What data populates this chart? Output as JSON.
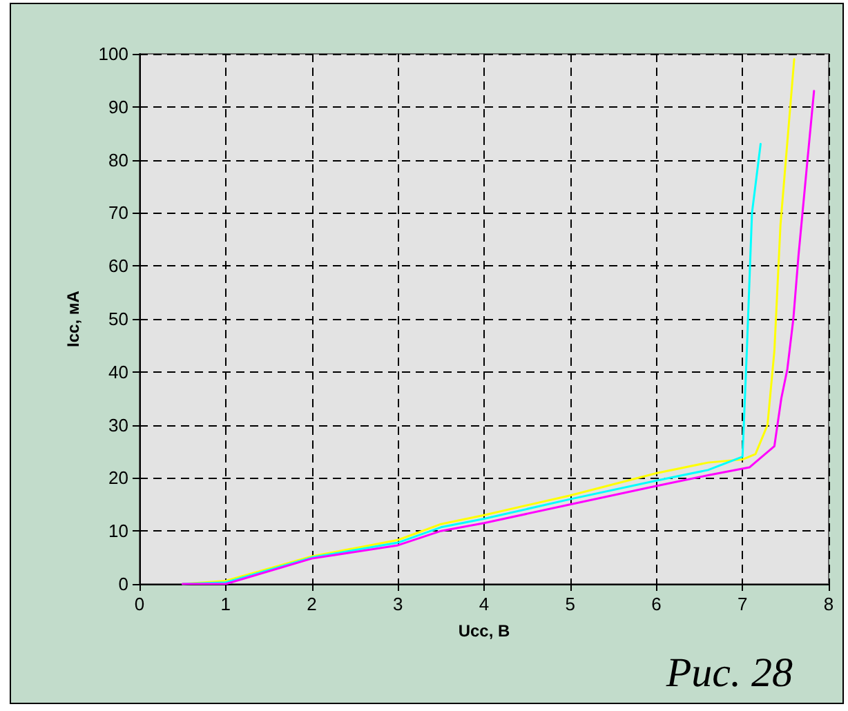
{
  "chart_data": {
    "type": "line",
    "xlabel": "Ucc, В",
    "ylabel": "Icc, мА",
    "annotations": [
      "Рис. 28"
    ],
    "xlim": [
      0,
      8
    ],
    "xticks": [
      0,
      1,
      2,
      3,
      4,
      5,
      6,
      7,
      8
    ],
    "ylim": [
      0,
      100
    ],
    "yticks": [
      0,
      10,
      20,
      30,
      40,
      50,
      60,
      70,
      80,
      90,
      100
    ],
    "grid": true,
    "line_style": "solid",
    "marker": "none",
    "series": [
      {
        "color": "#ffff00",
        "x": [
          0.5,
          1,
          2,
          3,
          3.5,
          4,
          5,
          6,
          6.6,
          7,
          7.15,
          7.29,
          7.37,
          7.44,
          7.6
        ],
        "values": [
          0,
          0.6,
          5.2,
          8.3,
          11.3,
          13,
          16.7,
          20.9,
          22.9,
          23.5,
          24.5,
          30,
          44,
          67.6,
          99
        ]
      },
      {
        "color": "#00ffff",
        "x": [
          0.5,
          1,
          2,
          3,
          3.5,
          4,
          5,
          6,
          6.6,
          7,
          7.05,
          7.11,
          7.21
        ],
        "values": [
          0,
          0.3,
          5,
          7.8,
          10.7,
          12.3,
          16,
          19.5,
          21.5,
          24,
          44,
          70,
          83
        ]
      },
      {
        "color": "#ff00ff",
        "x": [
          0.5,
          1,
          2,
          3,
          3.5,
          4,
          5,
          6,
          6.6,
          7.08,
          7.37,
          7.45,
          7.52,
          7.59,
          7.65,
          7.76,
          7.83
        ],
        "values": [
          0,
          0,
          4.8,
          7.3,
          10,
          11.5,
          15,
          18.5,
          20.5,
          22,
          26,
          35,
          40.5,
          50,
          62,
          81,
          93
        ]
      }
    ]
  }
}
